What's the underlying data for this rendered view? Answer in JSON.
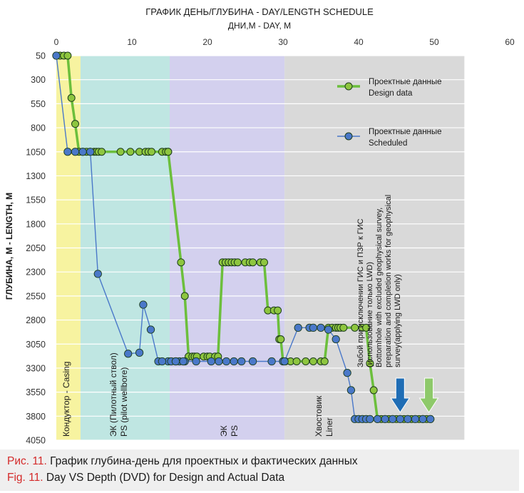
{
  "chart_data": {
    "type": "line",
    "title": "ГРАФИК ДЕНЬ/ГЛУБИНА - DAY/LENGTH SCHEDULE",
    "subtitle": "ДНИ,М - DAY, М",
    "ylabel": "ГЛУБИНА, М - LENGTH, M",
    "xlim": [
      0,
      60
    ],
    "ylim": [
      50,
      4050
    ],
    "y_inverted": true,
    "x_ticks": [
      0,
      10,
      20,
      30,
      40,
      50,
      60
    ],
    "y_ticks": [
      50,
      300,
      550,
      800,
      1050,
      1300,
      1550,
      1800,
      2050,
      2300,
      2550,
      2800,
      3050,
      3300,
      3550,
      3800,
      4050
    ],
    "legend_position": "top-right",
    "sections": [
      {
        "label": "Кондуктор - Casing",
        "x_start": 0,
        "x_end": 3.2,
        "color": "#f7f3a0"
      },
      {
        "label": "ЭК (Пилотный ствол)\nPS (pilot wellbore)",
        "x_start": 3.2,
        "x_end": 15,
        "color": "#bfe6e2"
      },
      {
        "label": "ЭК\nPS",
        "x_start": 15,
        "x_end": 30.2,
        "color": "#d3d0ee"
      },
      {
        "label": "Хвостовик\nLiner",
        "x_start": 30.2,
        "x_end": 54,
        "color": "#d9d9d9"
      }
    ],
    "annotation": "Забой при исключении ГИС и ПЗР к ГИС\n(использование только LWD)\nBottomhole with excluded geophysical survey,\npreparation and completion works for geophysical\nsurvey(applying LWD only)",
    "arrows": [
      {
        "x": 45.5,
        "color": "#1f6db5"
      },
      {
        "x": 49.3,
        "color": "#8ec96a"
      }
    ],
    "series": [
      {
        "name": "Проектные данные\nDesign data",
        "color": "#6cbf3c",
        "marker_fill": "#8ec63f",
        "x": [
          0,
          0.5,
          1,
          1.5,
          2,
          2.5,
          3,
          3.5,
          4,
          4.5,
          5,
          5.3,
          5.6,
          6,
          8.5,
          9.8,
          11,
          11.8,
          12.2,
          12.6,
          14,
          14.5,
          14.8,
          14.8,
          16.5,
          17,
          17.5,
          18,
          18.3,
          18.6,
          19.5,
          20,
          20.3,
          21,
          21.4,
          22,
          22.4,
          22.8,
          23.2,
          23.6,
          24,
          25,
          25.6,
          26,
          27,
          27.5,
          28,
          28.8,
          29.3,
          29.5,
          29.7,
          30,
          30.3,
          31,
          31.8,
          33,
          34,
          35,
          35.5,
          36,
          36.5,
          37,
          37.3,
          37.6,
          38,
          39.5,
          40.5,
          41,
          41.5,
          42,
          42.5,
          43,
          44,
          45,
          46,
          47,
          48,
          48.5,
          49,
          49.5
        ],
        "y": [
          50,
          50,
          50,
          50,
          490,
          760,
          1050,
          1050,
          1050,
          1050,
          1050,
          1050,
          1050,
          1050,
          1050,
          1050,
          1050,
          1050,
          1050,
          1050,
          1050,
          1050,
          1050,
          1050,
          2200,
          2550,
          3180,
          3180,
          3180,
          3180,
          3180,
          3180,
          3180,
          3180,
          3180,
          2200,
          2200,
          2200,
          2200,
          2200,
          2200,
          2200,
          2200,
          2200,
          2200,
          2200,
          2700,
          2700,
          2700,
          3000,
          3000,
          3230,
          3230,
          3230,
          3230,
          3230,
          3230,
          3230,
          3230,
          2880,
          2880,
          2880,
          2880,
          2880,
          2880,
          2880,
          2880,
          2880,
          3250,
          3530,
          3830,
          3830,
          3830,
          3830,
          3830,
          3830,
          3830,
          3830,
          3830,
          3830
        ]
      },
      {
        "name": "Проектные данные\nScheduled",
        "color": "#4a78c9",
        "marker_fill": "#4a78c9",
        "x": [
          0,
          1.5,
          2.5,
          3.5,
          4.5,
          5.5,
          9.5,
          11,
          11.5,
          12.5,
          13.5,
          14.8,
          14,
          15.2,
          15.8,
          16.3,
          16.8,
          17,
          16.8,
          15.8,
          18.5,
          20.5,
          21.5,
          22.5,
          23.5,
          24.5,
          26,
          28.5,
          30,
          30.2,
          32,
          33.5,
          34,
          35,
          36,
          37,
          38.5,
          39,
          39.5,
          40,
          40.5,
          41,
          41.5,
          42.5,
          43.5,
          44.5,
          45.5,
          46.5,
          47.5,
          48.5,
          49.5
        ],
        "y": [
          50,
          1050,
          1050,
          1050,
          1050,
          2320,
          3150,
          3140,
          2640,
          2900,
          3230,
          3230,
          3230,
          3230,
          3230,
          3230,
          3230,
          3230,
          3230,
          3230,
          3230,
          3230,
          3230,
          3230,
          3230,
          3230,
          3230,
          3230,
          3230,
          3230,
          2880,
          2880,
          2880,
          2880,
          2900,
          3000,
          3350,
          3530,
          3830,
          3830,
          3830,
          3830,
          3830,
          3830,
          3830,
          3830,
          3830,
          3830,
          3830,
          3830,
          3830
        ]
      }
    ]
  },
  "caption": {
    "ru_label": "Рис. 11.",
    "ru_text": " График глубина-день для проектных и фактических данных",
    "en_label": "Fig. 11.",
    "en_text": " Day VS Depth (DVD) for Design and Actual Data"
  }
}
